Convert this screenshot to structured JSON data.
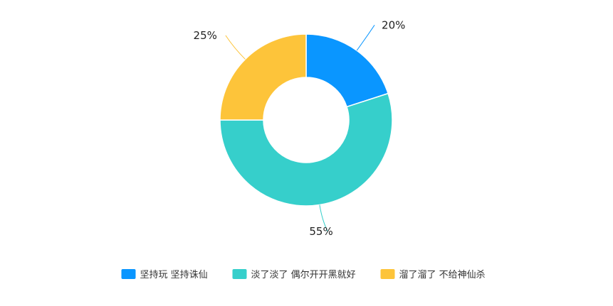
{
  "chart_data": {
    "type": "pie",
    "donut": true,
    "title": "",
    "legend_position": "bottom",
    "slices": [
      {
        "name": "坚持玩 坚持诛仙",
        "value": 20,
        "label": "20%",
        "color": "#0a96ff"
      },
      {
        "name": "淡了淡了 偶尔开开黑就好",
        "value": 55,
        "label": "55%",
        "color": "#36cfcb"
      },
      {
        "name": "溜了溜了 不给神仙杀",
        "value": 25,
        "label": "25%",
        "color": "#fdc43a"
      }
    ]
  }
}
